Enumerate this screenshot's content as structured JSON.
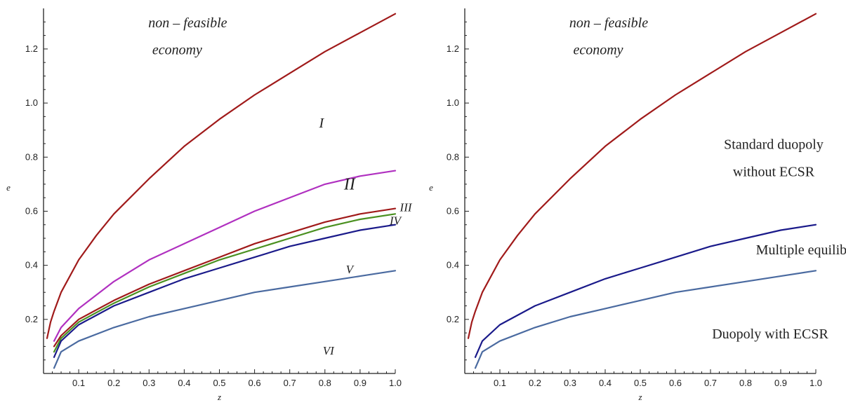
{
  "chart_data": [
    {
      "type": "line",
      "xlabel": "z",
      "ylabel": "e",
      "xlim": [
        0.0,
        1.0
      ],
      "ylim": [
        0.0,
        1.35
      ],
      "x_ticks": [
        "0.1",
        "0.2",
        "0.3",
        "0.4",
        "0.5",
        "0.6",
        "0.7",
        "0.8",
        "0.9",
        "1.0"
      ],
      "y_ticks": [
        "0.2",
        "0.4",
        "0.6",
        "0.8",
        "1.0",
        "1.2"
      ],
      "series": [
        {
          "color": "#a01a1a",
          "x": [
            0.01,
            0.02,
            0.03,
            0.05,
            0.1,
            0.15,
            0.2,
            0.3,
            0.4,
            0.5,
            0.6,
            0.7,
            0.8,
            0.9,
            1.0
          ],
          "y": [
            0.13,
            0.19,
            0.23,
            0.3,
            0.42,
            0.51,
            0.59,
            0.72,
            0.84,
            0.94,
            1.03,
            1.11,
            1.19,
            1.26,
            1.33
          ]
        },
        {
          "color": "#b030c0",
          "x": [
            0.03,
            0.05,
            0.1,
            0.2,
            0.3,
            0.4,
            0.5,
            0.6,
            0.7,
            0.8,
            0.9,
            1.0
          ],
          "y": [
            0.12,
            0.17,
            0.24,
            0.34,
            0.42,
            0.48,
            0.54,
            0.6,
            0.65,
            0.7,
            0.73,
            0.75
          ]
        },
        {
          "color": "#a01a1a",
          "x": [
            0.03,
            0.05,
            0.1,
            0.2,
            0.3,
            0.4,
            0.5,
            0.6,
            0.7,
            0.8,
            0.9,
            1.0
          ],
          "y": [
            0.1,
            0.14,
            0.2,
            0.27,
            0.33,
            0.38,
            0.43,
            0.48,
            0.52,
            0.56,
            0.59,
            0.61
          ]
        },
        {
          "color": "#4a9020",
          "x": [
            0.03,
            0.05,
            0.1,
            0.2,
            0.3,
            0.4,
            0.5,
            0.6,
            0.7,
            0.8,
            0.9,
            1.0
          ],
          "y": [
            0.08,
            0.13,
            0.19,
            0.26,
            0.32,
            0.37,
            0.42,
            0.46,
            0.5,
            0.54,
            0.57,
            0.59
          ]
        },
        {
          "color": "#1a1a8a",
          "x": [
            0.03,
            0.05,
            0.1,
            0.2,
            0.3,
            0.4,
            0.5,
            0.6,
            0.7,
            0.8,
            0.9,
            1.0
          ],
          "y": [
            0.06,
            0.12,
            0.18,
            0.25,
            0.3,
            0.35,
            0.39,
            0.43,
            0.47,
            0.5,
            0.53,
            0.55
          ]
        },
        {
          "color": "#4a6aa0",
          "x": [
            0.03,
            0.05,
            0.1,
            0.2,
            0.3,
            0.4,
            0.5,
            0.6,
            0.7,
            0.8,
            0.9,
            1.0
          ],
          "y": [
            0.02,
            0.08,
            0.12,
            0.17,
            0.21,
            0.24,
            0.27,
            0.3,
            0.32,
            0.34,
            0.36,
            0.38
          ]
        }
      ],
      "annotations": [
        {
          "text": "non – feasible",
          "x": 0.41,
          "y": 1.28,
          "style": "italic",
          "size": "large"
        },
        {
          "text": "economy",
          "x": 0.38,
          "y": 1.18,
          "style": "italic",
          "size": "large"
        },
        {
          "text": "I",
          "x": 0.79,
          "y": 0.91,
          "style": "italic",
          "size": "large"
        },
        {
          "text": "II",
          "x": 0.87,
          "y": 0.68,
          "style": "italic",
          "size": "xlarge"
        },
        {
          "text": "III",
          "x": 1.03,
          "y": 0.6,
          "style": "italic",
          "size": "medium"
        },
        {
          "text": "IV",
          "x": 1.0,
          "y": 0.55,
          "style": "italic",
          "size": "medium"
        },
        {
          "text": "V",
          "x": 0.87,
          "y": 0.37,
          "style": "italic",
          "size": "medium"
        },
        {
          "text": "VI",
          "x": 0.81,
          "y": 0.07,
          "style": "italic",
          "size": "medium"
        }
      ]
    },
    {
      "type": "line",
      "xlabel": "z",
      "ylabel": "e",
      "xlim": [
        0.0,
        1.0
      ],
      "ylim": [
        0.0,
        1.35
      ],
      "x_ticks": [
        "0.1",
        "0.2",
        "0.3",
        "0.4",
        "0.5",
        "0.6",
        "0.7",
        "0.8",
        "0.9",
        "1.0"
      ],
      "y_ticks": [
        "0.2",
        "0.4",
        "0.6",
        "0.8",
        "1.0",
        "1.2"
      ],
      "series": [
        {
          "color": "#a01a1a",
          "x": [
            0.01,
            0.02,
            0.03,
            0.05,
            0.1,
            0.15,
            0.2,
            0.3,
            0.4,
            0.5,
            0.6,
            0.7,
            0.8,
            0.9,
            1.0
          ],
          "y": [
            0.13,
            0.19,
            0.23,
            0.3,
            0.42,
            0.51,
            0.59,
            0.72,
            0.84,
            0.94,
            1.03,
            1.11,
            1.19,
            1.26,
            1.33
          ]
        },
        {
          "color": "#1a1a8a",
          "x": [
            0.03,
            0.05,
            0.1,
            0.2,
            0.3,
            0.4,
            0.5,
            0.6,
            0.7,
            0.8,
            0.9,
            1.0
          ],
          "y": [
            0.06,
            0.12,
            0.18,
            0.25,
            0.3,
            0.35,
            0.39,
            0.43,
            0.47,
            0.5,
            0.53,
            0.55
          ]
        },
        {
          "color": "#4a6aa0",
          "x": [
            0.03,
            0.05,
            0.1,
            0.2,
            0.3,
            0.4,
            0.5,
            0.6,
            0.7,
            0.8,
            0.9,
            1.0
          ],
          "y": [
            0.02,
            0.08,
            0.12,
            0.17,
            0.21,
            0.24,
            0.27,
            0.3,
            0.32,
            0.34,
            0.36,
            0.38
          ]
        }
      ],
      "annotations": [
        {
          "text": "non – feasible",
          "x": 0.41,
          "y": 1.28,
          "style": "italic",
          "size": "large"
        },
        {
          "text": "economy",
          "x": 0.38,
          "y": 1.18,
          "style": "italic",
          "size": "large"
        },
        {
          "text": "Standard duopoly",
          "x": 0.88,
          "y": 0.83,
          "style": "normal",
          "size": "large"
        },
        {
          "text": "without ECSR",
          "x": 0.88,
          "y": 0.73,
          "style": "normal",
          "size": "large"
        },
        {
          "text": "Multiple equilibria",
          "x": 0.98,
          "y": 0.44,
          "style": "normal",
          "size": "large"
        },
        {
          "text": "Duopoly with ECSR",
          "x": 0.87,
          "y": 0.13,
          "style": "normal",
          "size": "large"
        }
      ]
    }
  ]
}
